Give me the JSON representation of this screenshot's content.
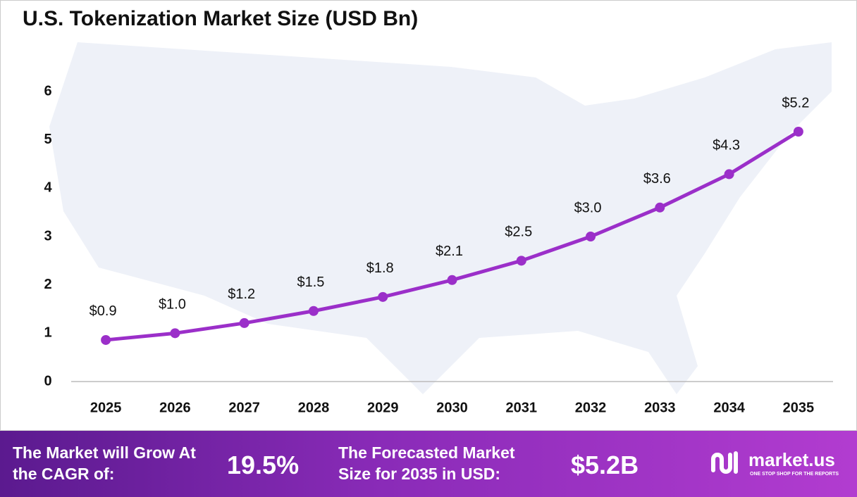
{
  "chart_data": {
    "type": "line",
    "title": "U.S. Tokenization Market Size (USD Bn)",
    "categories": [
      "2025",
      "2026",
      "2027",
      "2028",
      "2029",
      "2030",
      "2031",
      "2032",
      "2033",
      "2034",
      "2035"
    ],
    "series": [
      {
        "name": "U.S. Tokenization Market Size",
        "color": "#9b2fc9",
        "values": [
          0.86,
          1.0,
          1.21,
          1.46,
          1.75,
          2.1,
          2.5,
          3.0,
          3.6,
          4.29,
          5.17
        ],
        "value_labels": [
          "$0.9",
          "$1.0",
          "$1.2",
          "$1.5",
          "$1.8",
          "$2.1",
          "$2.5",
          "$3.0",
          "$3.6",
          "$4.3",
          "$5.2"
        ]
      }
    ],
    "ylim": [
      0,
      6
    ],
    "yticks": [
      0,
      1,
      2,
      3,
      4,
      5,
      6
    ],
    "grid": false
  },
  "footer": {
    "cagr_text": "The Market will Grow At the CAGR of:",
    "cagr_value": "19.5%",
    "forecast_text": "The Forecasted Market Size for 2035 in USD:",
    "forecast_value": "$5.2B",
    "brand": "market.us",
    "tagline": "ONE STOP SHOP FOR THE REPORTS"
  }
}
